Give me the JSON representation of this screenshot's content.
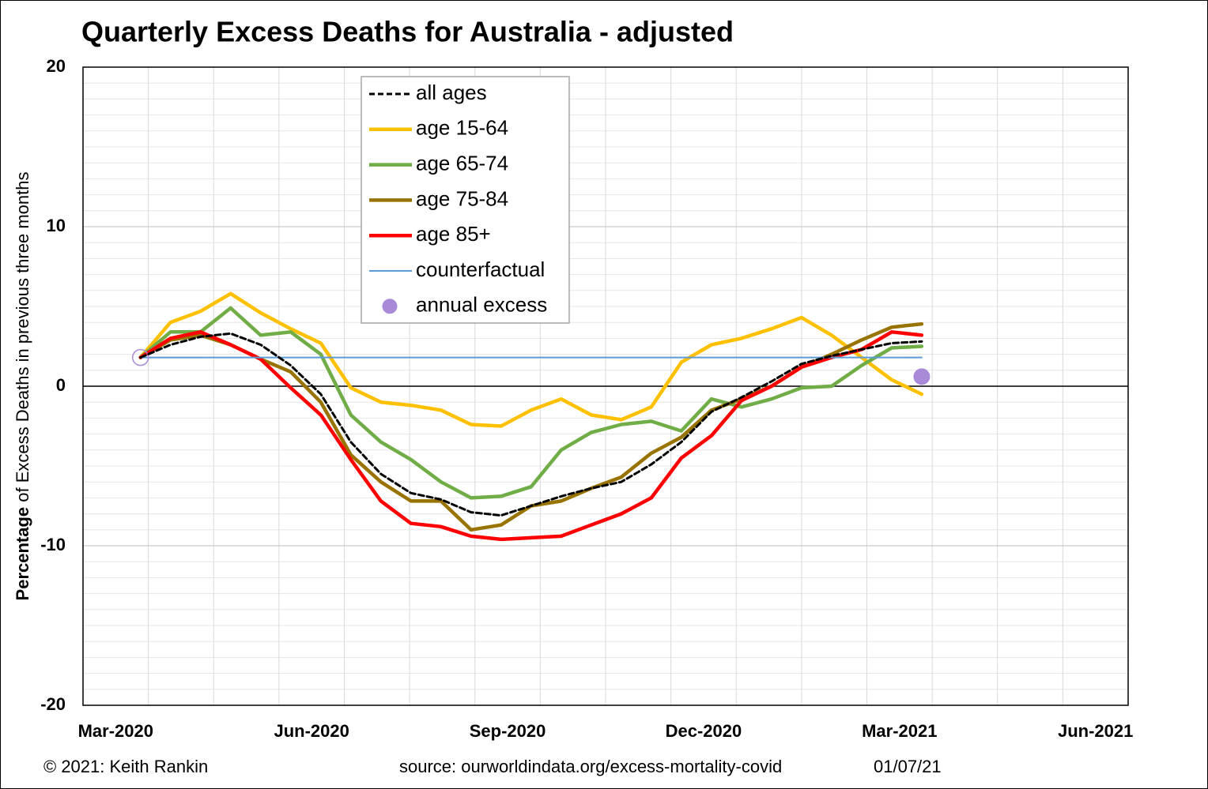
{
  "chart_data": {
    "type": "line",
    "title": "Quarterly Excess Deaths for Australia - adjusted",
    "y_label_bold": "Percentage",
    "y_label": " of Excess Deaths in previous three months",
    "footer_left": "© 2021: Keith Rankin",
    "footer_source": "source: ourworldindata.org/excess-mortality-covid",
    "footer_date": "01/07/21",
    "x": [
      0.88,
      1.34,
      1.8,
      2.26,
      2.72,
      3.18,
      3.64,
      4.1,
      4.56,
      5.02,
      5.48,
      5.94,
      6.4,
      6.86,
      7.32,
      7.78,
      8.24,
      8.7,
      9.16,
      9.62,
      10.08,
      10.54,
      11.0,
      11.46,
      11.92,
      12.38,
      12.84
    ],
    "xlim": [
      0,
      16
    ],
    "xgrid": [
      0,
      1,
      2,
      3,
      4,
      5,
      6,
      7,
      8,
      9,
      10,
      11,
      12,
      13,
      14,
      15,
      16
    ],
    "xticks": [
      {
        "value": 0.5,
        "label": "Mar-2020"
      },
      {
        "value": 3.5,
        "label": "Jun-2020"
      },
      {
        "value": 6.5,
        "label": "Sep-2020"
      },
      {
        "value": 9.5,
        "label": "Dec-2020"
      },
      {
        "value": 12.5,
        "label": "Mar-2021"
      },
      {
        "value": 15.5,
        "label": "Jun-2021"
      }
    ],
    "ylim": [
      -20,
      20
    ],
    "yticks": [
      -20,
      -10,
      0,
      10,
      20
    ],
    "yminor_step": 1,
    "grid": true,
    "legend": "top",
    "series": [
      {
        "name": "all ages",
        "color": "#000000",
        "dash": true,
        "values": [
          1.8,
          2.6,
          3.1,
          3.3,
          2.6,
          1.3,
          -0.5,
          -3.5,
          -5.5,
          -6.7,
          -7.1,
          -7.9,
          -8.1,
          -7.5,
          -6.9,
          -6.4,
          -6.0,
          -4.9,
          -3.5,
          -1.6,
          -0.7,
          0.3,
          1.4,
          1.9,
          2.3,
          2.7,
          2.8
        ]
      },
      {
        "name": "age 15-64",
        "color": "#ffc000",
        "values": [
          1.8,
          4.0,
          4.7,
          5.8,
          4.6,
          3.6,
          2.7,
          -0.1,
          -1.0,
          -1.2,
          -1.5,
          -2.4,
          -2.5,
          -1.5,
          -0.8,
          -1.8,
          -2.1,
          -1.3,
          1.5,
          2.6,
          3.0,
          3.6,
          4.3,
          3.2,
          1.8,
          0.4,
          -0.5
        ]
      },
      {
        "name": "age 65-74",
        "color": "#70ad47",
        "values": [
          1.8,
          3.4,
          3.4,
          4.9,
          3.2,
          3.4,
          2.0,
          -1.8,
          -3.5,
          -4.6,
          -6.0,
          -7.0,
          -6.9,
          -6.3,
          -4.0,
          -2.9,
          -2.4,
          -2.2,
          -2.8,
          -0.8,
          -1.3,
          -0.8,
          -0.1,
          0.0,
          1.3,
          2.4,
          2.5
        ]
      },
      {
        "name": "age 75-84",
        "color": "#997300",
        "values": [
          1.8,
          2.9,
          3.2,
          2.6,
          1.7,
          0.9,
          -1.0,
          -4.3,
          -6.0,
          -7.2,
          -7.2,
          -9.0,
          -8.7,
          -7.5,
          -7.2,
          -6.4,
          -5.7,
          -4.2,
          -3.2,
          -1.5,
          -0.8,
          0.0,
          1.2,
          2.0,
          2.9,
          3.7,
          3.9
        ]
      },
      {
        "name": "age 85+",
        "color": "#ff0000",
        "values": [
          1.8,
          3.0,
          3.4,
          2.6,
          1.7,
          -0.1,
          -1.8,
          -4.6,
          -7.2,
          -8.6,
          -8.8,
          -9.4,
          -9.6,
          -9.5,
          -9.4,
          -8.7,
          -8.0,
          -7.0,
          -4.5,
          -3.1,
          -0.9,
          0.0,
          1.2,
          1.8,
          2.3,
          3.4,
          3.2
        ]
      },
      {
        "name": "counterfactual",
        "color": "#5b9bd5",
        "thin": true,
        "x": [
          0.88,
          12.84
        ],
        "values": [
          1.8,
          1.8
        ]
      },
      {
        "name": "annual excess",
        "color": "#a98ad8",
        "marker": true,
        "hollow": [
          true,
          false
        ],
        "x": [
          0.88,
          12.84
        ],
        "values": [
          1.8,
          0.6
        ]
      }
    ]
  }
}
